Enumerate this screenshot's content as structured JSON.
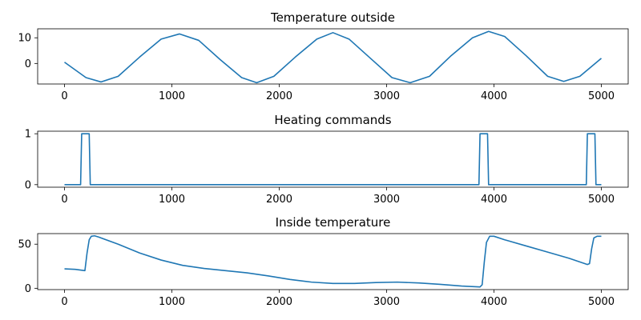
{
  "chart_data": [
    {
      "type": "line",
      "title": "Temperature outside",
      "xlabel": "",
      "ylabel": "",
      "xlim": [
        -250,
        5250
      ],
      "ylim": [
        -8,
        13.5
      ],
      "xticks": [
        0,
        1000,
        2000,
        3000,
        4000,
        5000
      ],
      "yticks": [
        0,
        10
      ],
      "grid": false,
      "series": [
        {
          "color": "#1f77b4",
          "x": [
            0,
            200,
            340,
            500,
            700,
            900,
            1070,
            1250,
            1450,
            1650,
            1790,
            1950,
            2150,
            2350,
            2500,
            2650,
            2850,
            3050,
            3220,
            3400,
            3600,
            3800,
            3950,
            4100,
            4300,
            4500,
            4650,
            4800,
            5000
          ],
          "y": [
            0.5,
            -5.5,
            -7.2,
            -5.0,
            2.5,
            9.5,
            11.5,
            9.0,
            1.5,
            -5.5,
            -7.5,
            -5.0,
            2.5,
            9.5,
            12.0,
            9.5,
            2.0,
            -5.5,
            -7.5,
            -5.0,
            3.0,
            10.0,
            12.5,
            10.5,
            3.0,
            -5.0,
            -7.0,
            -5.0,
            2.0
          ]
        }
      ]
    },
    {
      "type": "line",
      "title": "Heating commands",
      "xlabel": "",
      "ylabel": "",
      "xlim": [
        -250,
        5250
      ],
      "ylim": [
        -0.05,
        1.05
      ],
      "xticks": [
        0,
        1000,
        2000,
        3000,
        4000,
        5000
      ],
      "yticks": [
        0,
        1
      ],
      "grid": false,
      "series": [
        {
          "color": "#1f77b4",
          "x": [
            0,
            150,
            160,
            230,
            240,
            3860,
            3870,
            3940,
            3950,
            4860,
            4870,
            4940,
            4950,
            5000
          ],
          "y": [
            0,
            0,
            1,
            1,
            0,
            0,
            1,
            1,
            0,
            0,
            1,
            1,
            0,
            0
          ]
        }
      ]
    },
    {
      "type": "line",
      "title": "Inside temperature",
      "xlabel": "",
      "ylabel": "",
      "xlim": [
        -250,
        5250
      ],
      "ylim": [
        -1.5,
        62
      ],
      "xticks": [
        0,
        1000,
        2000,
        3000,
        4000,
        5000
      ],
      "yticks": [
        0,
        50
      ],
      "grid": false,
      "series": [
        {
          "color": "#1f77b4",
          "x": [
            0,
            100,
            190,
            210,
            230,
            250,
            280,
            320,
            500,
            700,
            900,
            1100,
            1300,
            1500,
            1700,
            1900,
            2100,
            2300,
            2500,
            2700,
            2900,
            3100,
            3300,
            3500,
            3700,
            3870,
            3890,
            3910,
            3930,
            3960,
            4000,
            4100,
            4300,
            4500,
            4700,
            4870,
            4890,
            4910,
            4930,
            4960,
            5000
          ],
          "y": [
            22,
            21.5,
            20,
            40,
            55,
            59,
            59.5,
            58,
            50,
            40,
            32,
            26,
            22.5,
            20,
            17.5,
            14,
            10,
            7,
            5.5,
            5.5,
            6.5,
            7,
            6,
            4.5,
            2.5,
            1.5,
            4,
            30,
            52,
            59,
            59,
            55,
            48,
            41,
            34,
            27,
            28,
            45,
            57,
            59,
            59
          ]
        }
      ]
    }
  ]
}
